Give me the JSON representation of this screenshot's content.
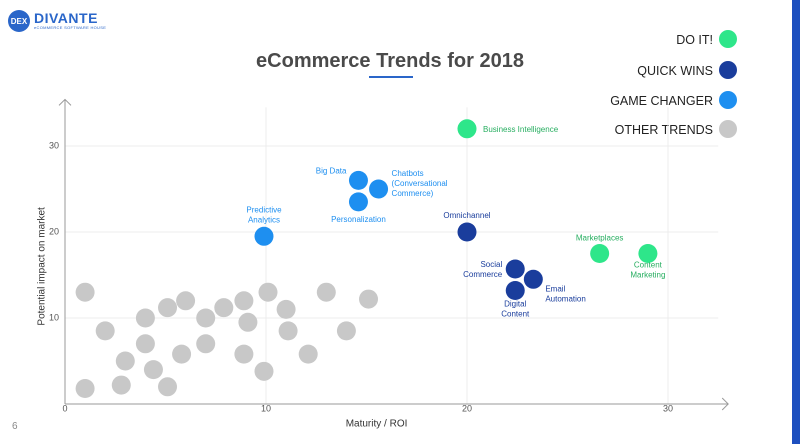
{
  "brand": {
    "name": "DIVANTE",
    "tagline": "eCOMMERCE SOFTWARE HOUSE",
    "badge": "DEX"
  },
  "page_number": "6",
  "legend": [
    {
      "label": "DO IT!",
      "color": "#2ee68a"
    },
    {
      "label": "QUICK WINS",
      "color": "#1a3d9c"
    },
    {
      "label": "GAME CHANGER",
      "color": "#1e8ff0"
    },
    {
      "label": "OTHER TRENDS",
      "color": "#c8c8c8"
    }
  ],
  "chart_data": {
    "type": "scatter",
    "title": "eCommerce Trends for 2018",
    "xlabel": "Maturity / ROI",
    "ylabel": "Potential impact on market",
    "xlim": [
      0,
      32
    ],
    "ylim": [
      0,
      36
    ],
    "x_ticks": [
      0,
      10,
      20,
      30
    ],
    "y_ticks": [
      10,
      20,
      30
    ],
    "grid": true,
    "legend_position": "top-right",
    "series": [
      {
        "name": "DO IT!",
        "color": "#2ee68a",
        "label_color": "#27ae60",
        "points": [
          {
            "x": 20,
            "y": 32,
            "label": "Business Intelligence"
          },
          {
            "x": 26.6,
            "y": 17.5,
            "label": "Marketplaces"
          },
          {
            "x": 29,
            "y": 17.5,
            "label": "Content Marketing"
          }
        ]
      },
      {
        "name": "QUICK WINS",
        "color": "#1a3d9c",
        "label_color": "#1a3d9c",
        "points": [
          {
            "x": 20,
            "y": 20,
            "label": "Omnichannel"
          },
          {
            "x": 22.4,
            "y": 15.7,
            "label": "Social Commerce"
          },
          {
            "x": 23.3,
            "y": 14.5,
            "label": "Email Automation"
          },
          {
            "x": 22.4,
            "y": 13.2,
            "label": "Digital Content"
          }
        ]
      },
      {
        "name": "GAME CHANGER",
        "color": "#1e8ff0",
        "label_color": "#1e8ff0",
        "points": [
          {
            "x": 9.9,
            "y": 19.5,
            "label": "Predictive Analytics"
          },
          {
            "x": 14.6,
            "y": 26.0,
            "label": "Big Data"
          },
          {
            "x": 15.6,
            "y": 25.0,
            "label": "Chatbots (Conversational Commerce)"
          },
          {
            "x": 14.6,
            "y": 23.5,
            "label": "Personalization"
          }
        ]
      },
      {
        "name": "OTHER TRENDS",
        "color": "#c8c8c8",
        "points": [
          {
            "x": 1.0,
            "y": 13.0
          },
          {
            "x": 2.0,
            "y": 8.5
          },
          {
            "x": 4.0,
            "y": 10.0
          },
          {
            "x": 5.1,
            "y": 11.2
          },
          {
            "x": 6.0,
            "y": 12.0
          },
          {
            "x": 7.0,
            "y": 10.0
          },
          {
            "x": 7.9,
            "y": 11.2
          },
          {
            "x": 8.9,
            "y": 12.0
          },
          {
            "x": 9.1,
            "y": 9.5
          },
          {
            "x": 10.1,
            "y": 13.0
          },
          {
            "x": 11.0,
            "y": 11.0
          },
          {
            "x": 11.1,
            "y": 8.5
          },
          {
            "x": 3.0,
            "y": 5.0
          },
          {
            "x": 4.0,
            "y": 7.0
          },
          {
            "x": 4.4,
            "y": 4.0
          },
          {
            "x": 5.8,
            "y": 5.8
          },
          {
            "x": 7.0,
            "y": 7.0
          },
          {
            "x": 8.9,
            "y": 5.8
          },
          {
            "x": 9.9,
            "y": 3.8
          },
          {
            "x": 12.1,
            "y": 5.8
          },
          {
            "x": 13.0,
            "y": 13.0
          },
          {
            "x": 14.0,
            "y": 8.5
          },
          {
            "x": 15.1,
            "y": 12.2
          },
          {
            "x": 1.0,
            "y": 1.8
          },
          {
            "x": 2.8,
            "y": 2.2
          },
          {
            "x": 5.1,
            "y": 2.0
          }
        ]
      }
    ]
  }
}
